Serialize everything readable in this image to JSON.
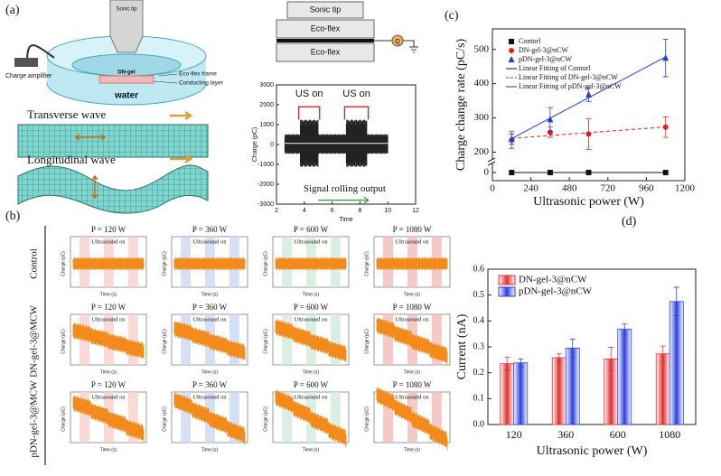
{
  "panels": {
    "a": {
      "label": "(a)",
      "sonic_tip": "Sonic tip",
      "charge_amplifier": "Charge amplifier",
      "dn_gel": "DN-gel",
      "frame": "Eco-flex frame",
      "conducting": "Conducting layer",
      "water": "water",
      "transverse": "Transverse wave",
      "longitudinal": "Longitudinal wave",
      "schematic": {
        "tip": "Sonic tip",
        "top_layer": "Eco-flex",
        "bottom_layer": "Eco-flex",
        "charge": "Q"
      }
    },
    "b": {
      "label": "(b)",
      "powers": [
        "P = 120 W",
        "P = 360 W",
        "P = 600 W",
        "P = 1080 W"
      ],
      "rows": [
        "Control",
        "DN-gel-3@MCW",
        "pDN-gel-3@MCW"
      ],
      "annotation": "Ultrasound on",
      "ylabel": "Charge (pC)",
      "xlabel": "Time (s)"
    },
    "c": {
      "label": "(c)"
    },
    "d": {
      "label": "(d)"
    }
  },
  "chart_data": [
    {
      "type": "signal",
      "xlabel": "Time",
      "ylabel": "Charge (pC)",
      "xlim": [
        2,
        12
      ],
      "xticks": [
        2,
        4,
        6,
        8,
        10,
        12
      ],
      "ylim": [
        -3000,
        3000
      ],
      "yticks": [
        -3000,
        -2000,
        -1000,
        0,
        1000,
        2000,
        3000
      ],
      "annotations": [
        "US on",
        "US on"
      ],
      "arrow_text": "Signal rolling output"
    },
    {
      "type": "scatter",
      "xlabel": "Ultrasonic power (W)",
      "ylabel": "Charge change rate (pC/s)",
      "xlim": [
        0,
        1200
      ],
      "xticks": [
        0,
        240,
        480,
        720,
        960,
        1200
      ],
      "ylim": [
        -20,
        560
      ],
      "y_break": [
        20,
        180
      ],
      "yticks": [
        0,
        200,
        300,
        400,
        500
      ],
      "series": [
        {
          "name": "Contorl",
          "fit_name": "Linear Fitting of Contorl",
          "color": "#111111",
          "marker": "square",
          "line_style": "solid",
          "x": [
            120,
            360,
            600,
            1080
          ],
          "values": [
            0,
            0,
            0,
            0
          ],
          "errors": [
            0,
            0,
            0,
            0
          ]
        },
        {
          "name": "DN-gel-3@nCW",
          "fit_name": "Linear Fitting of DN-gel-3@nCW",
          "color": "#e02020",
          "marker": "circle",
          "line_style": "dashed",
          "x": [
            120,
            360,
            600,
            1080
          ],
          "values": [
            235,
            258,
            253,
            273
          ],
          "errors": [
            25,
            15,
            45,
            30
          ]
        },
        {
          "name": "pDN-gel-3@nCW",
          "fit_name": "Linear Fitting of pDN-gel-3@nCW",
          "color": "#1f3fd0",
          "marker": "triangle",
          "line_style": "solid",
          "x": [
            120,
            360,
            600,
            1080
          ],
          "values": [
            238,
            295,
            368,
            475
          ],
          "errors": [
            15,
            35,
            20,
            55
          ]
        }
      ]
    },
    {
      "type": "bar",
      "xlabel": "Ultrasonic power (W)",
      "ylabel": "Current (nA)",
      "categories": [
        "120",
        "360",
        "600",
        "1080"
      ],
      "ylim": [
        0,
        0.6
      ],
      "yticks": [
        {
          "value": 0,
          "label": "0.0"
        },
        0.1,
        0.2,
        0.3,
        0.4,
        0.5,
        0.6
      ],
      "series": [
        {
          "name": "DN-gel-3@nCW",
          "color": "#e03030",
          "values": [
            0.235,
            0.258,
            0.253,
            0.273
          ],
          "errors": [
            0.025,
            0.015,
            0.045,
            0.03
          ]
        },
        {
          "name": "pDN-gel-3@nCW",
          "color": "#2b3fe0",
          "values": [
            0.238,
            0.295,
            0.368,
            0.475
          ],
          "errors": [
            0.015,
            0.035,
            0.02,
            0.055
          ]
        }
      ]
    }
  ]
}
